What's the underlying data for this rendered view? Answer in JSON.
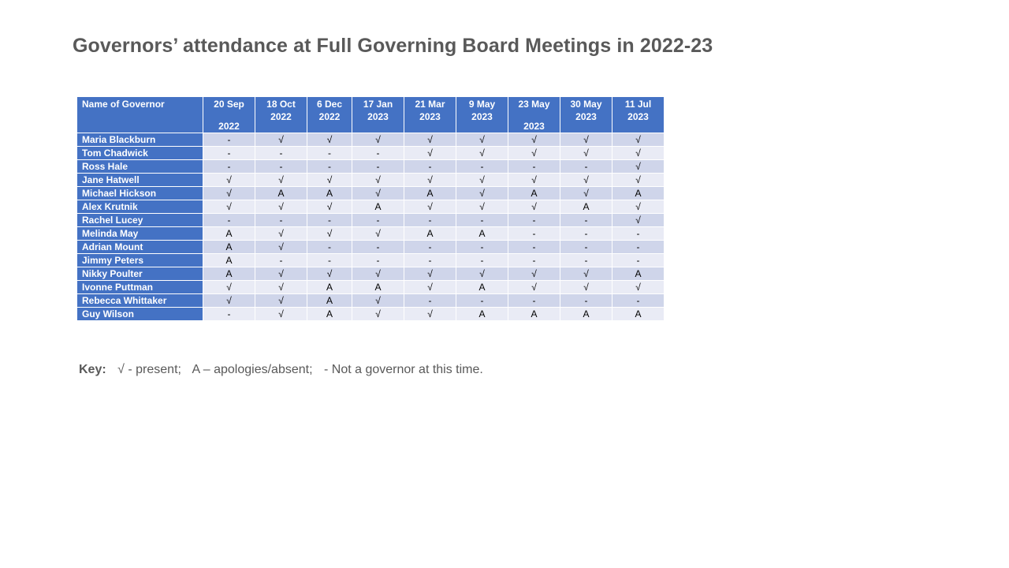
{
  "title": "Governors’ attendance at Full Governing Board Meetings in 2022-23",
  "table": {
    "name_header": "Name of Governor",
    "dates": [
      {
        "line1": "20 Sep",
        "line2": "2022",
        "split": true
      },
      {
        "line1": "18 Oct",
        "line2": "2022",
        "split": false
      },
      {
        "line1": "6 Dec",
        "line2": "2022",
        "split": false
      },
      {
        "line1": "17 Jan",
        "line2": "2023",
        "split": false
      },
      {
        "line1": "21 Mar",
        "line2": "2023",
        "split": false
      },
      {
        "line1": "9 May",
        "line2": "2023",
        "split": false
      },
      {
        "line1": "23 May",
        "line2": "2023",
        "split": true
      },
      {
        "line1": "30 May",
        "line2": "2023",
        "split": false
      },
      {
        "line1": "11 Jul",
        "line2": "2023",
        "split": false
      }
    ],
    "rows": [
      {
        "name": "Maria  Blackburn",
        "marks": [
          "-",
          "√",
          "√",
          "√",
          "√",
          "√",
          "√",
          "√",
          "√"
        ]
      },
      {
        "name": "Tom Chadwick",
        "marks": [
          "-",
          "-",
          "-",
          "-",
          "√",
          "√",
          "√",
          "√",
          "√"
        ]
      },
      {
        "name": "Ross Hale",
        "marks": [
          "-",
          "-",
          "-",
          "-",
          "-",
          "-",
          "-",
          "-",
          "√"
        ]
      },
      {
        "name": "Jane Hatwell",
        "marks": [
          "√",
          "√",
          "√",
          "√",
          "√",
          "√",
          "√",
          "√",
          "√"
        ]
      },
      {
        "name": "Michael Hickson",
        "marks": [
          "√",
          "A",
          "A",
          "√",
          "A",
          "√",
          "A",
          "√",
          "A"
        ]
      },
      {
        "name": "Alex  Krutnik",
        "marks": [
          "√",
          "√",
          "√",
          "A",
          "√",
          "√",
          "√",
          "A",
          "√"
        ]
      },
      {
        "name": "Rachel Lucey",
        "marks": [
          "-",
          "-",
          "-",
          "-",
          "-",
          "-",
          "-",
          "-",
          "√"
        ]
      },
      {
        "name": "Melinda May",
        "marks": [
          "A",
          "√",
          "√",
          "√",
          "A",
          "A",
          "-",
          "-",
          "-"
        ]
      },
      {
        "name": "Adrian Mount",
        "marks": [
          "A",
          "√",
          "-",
          "-",
          "-",
          "-",
          "-",
          "-",
          "-"
        ]
      },
      {
        "name": "Jimmy Peters",
        "marks": [
          "A",
          "-",
          "-",
          "-",
          "-",
          "-",
          "-",
          "-",
          "-"
        ]
      },
      {
        "name": "Nikky Poulter",
        "marks": [
          "A",
          "√",
          "√",
          "√",
          "√",
          "√",
          "√",
          "√",
          "A"
        ]
      },
      {
        "name": "Ivonne Puttman",
        "marks": [
          "√",
          "√",
          "A",
          "A",
          "√",
          "A",
          "√",
          "√",
          "√"
        ]
      },
      {
        "name": "Rebecca Whittaker",
        "marks": [
          "√",
          "√",
          "A",
          "√",
          "-",
          "-",
          "-",
          "-",
          "-"
        ]
      },
      {
        "name": "Guy Wilson",
        "marks": [
          "-",
          "√",
          "A",
          "√",
          "√",
          "A",
          "A",
          "A",
          "A"
        ]
      }
    ]
  },
  "key": {
    "label": "Key:",
    "present": "√ - present;",
    "absent": "A – apologies/absent;",
    "not_governor": "- Not a governor at this time."
  },
  "colors": {
    "header_blue": "#4472c4",
    "row_band_dark": "#cfd5ea",
    "row_band_light": "#e9ebf5",
    "title_gray": "#595959"
  }
}
